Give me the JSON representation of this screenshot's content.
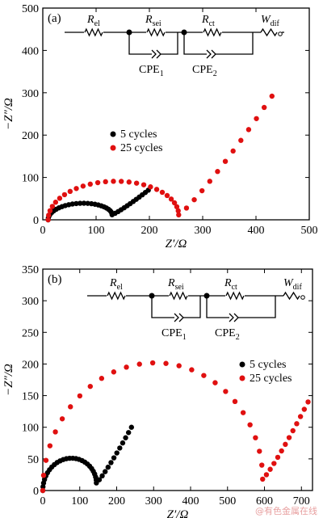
{
  "watermark": "@有色金属在线",
  "legend_labels": [
    "5 cycles",
    "25 cycles"
  ],
  "chart_data": [
    {
      "type": "scatter",
      "panel_label": "(a)",
      "xlabel": "Z′/Ω",
      "ylabel": "−Z″/Ω",
      "xlim": [
        0,
        500
      ],
      "ylim": [
        0,
        500
      ],
      "xticks": [
        0,
        100,
        200,
        300,
        400,
        500
      ],
      "yticks": [
        0,
        100,
        200,
        300,
        400,
        500
      ],
      "legend_position": "center-left",
      "circuit": {
        "R_el": "R",
        "R_el_sub": "el",
        "R_sei": "R",
        "R_sei_sub": "sei",
        "R_ct": "R",
        "R_ct_sub": "ct",
        "W_dif": "W",
        "W_dif_sub": "dif",
        "CPE1": "CPE",
        "CPE1_sub": "1",
        "CPE2": "CPE",
        "CPE2_sub": "2"
      },
      "series": [
        {
          "name": "5 cycles",
          "color": "#000000",
          "shape": "semicircle+tail",
          "arc_start": 10,
          "arc_end": 130,
          "arc_height": 36,
          "tail_end": [
            198,
            70
          ]
        },
        {
          "name": "25 cycles",
          "color": "#e01010",
          "shape": "semicircle+tail",
          "arc_start": 10,
          "arc_end": 255,
          "arc_height": 88,
          "arc_min": [
            255,
            22
          ],
          "tail_end": [
            430,
            292
          ]
        }
      ]
    },
    {
      "type": "scatter",
      "panel_label": "(b)",
      "xlabel": "Z′/Ω",
      "ylabel": "−Z″/Ω",
      "xlim": [
        0,
        730
      ],
      "ylim": [
        0,
        350
      ],
      "xticks": [
        0,
        100,
        200,
        300,
        400,
        500,
        600,
        700
      ],
      "yticks": [
        0,
        50,
        100,
        150,
        200,
        250,
        300,
        350
      ],
      "legend_position": "right",
      "circuit": {
        "R_el": "R",
        "R_el_sub": "el",
        "R_sei": "R",
        "R_sei_sub": "sei",
        "R_ct": "R",
        "R_ct_sub": "ct",
        "W_dif": "W",
        "W_dif_sub": "dif",
        "CPE1": "CPE",
        "CPE1_sub": "1",
        "CPE2": "CPE",
        "CPE2_sub": "2"
      },
      "series": [
        {
          "name": "5 cycles",
          "color": "#000000",
          "shape": "semicircle+tail",
          "arc_start": 0,
          "arc_end": 145,
          "arc_height": 48,
          "tail_end": [
            240,
            100
          ]
        },
        {
          "name": "25 cycles",
          "color": "#e01010",
          "shape": "semicircle+tail",
          "arc_start": 0,
          "arc_end": 595,
          "arc_height": 198,
          "arc_min": [
            595,
            40
          ],
          "tail_end": [
            718,
            140
          ]
        }
      ]
    }
  ]
}
